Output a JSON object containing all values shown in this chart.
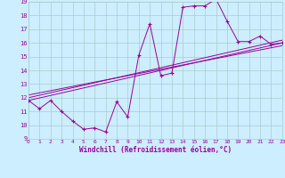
{
  "xlabel": "Windchill (Refroidissement éolien,°C)",
  "bg_color": "#cceeff",
  "grid_color": "#aacccc",
  "line_color": "#990099",
  "xmin": 0,
  "xmax": 23,
  "ymin": 9,
  "ymax": 19,
  "xticks": [
    0,
    1,
    2,
    3,
    4,
    5,
    6,
    7,
    8,
    9,
    10,
    11,
    12,
    13,
    14,
    15,
    16,
    17,
    18,
    19,
    20,
    21,
    22,
    23
  ],
  "yticks": [
    9,
    10,
    11,
    12,
    13,
    14,
    15,
    16,
    17,
    18,
    19
  ],
  "main_x": [
    0,
    1,
    2,
    3,
    4,
    5,
    6,
    7,
    8,
    9,
    10,
    11,
    12,
    13,
    14,
    15,
    16,
    17,
    18,
    19,
    20,
    21,
    22,
    23
  ],
  "main_y": [
    11.8,
    11.2,
    11.8,
    11.0,
    10.3,
    9.7,
    9.8,
    9.5,
    11.7,
    10.6,
    15.1,
    17.4,
    13.6,
    13.8,
    18.6,
    18.7,
    18.7,
    19.2,
    17.6,
    16.1,
    16.1,
    16.5,
    15.9,
    16.0
  ],
  "line1_x": [
    0,
    23
  ],
  "line1_y": [
    11.8,
    16.0
  ],
  "line2_x": [
    0,
    23
  ],
  "line2_y": [
    12.0,
    16.2
  ],
  "line3_x": [
    0,
    23
  ],
  "line3_y": [
    12.2,
    15.8
  ]
}
